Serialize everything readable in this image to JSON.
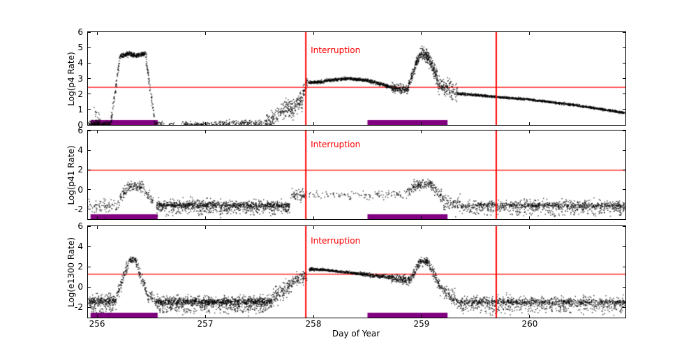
{
  "figure": {
    "background": "#ffffff"
  },
  "colors": {
    "points": "#000000",
    "vline": "#ff0000",
    "threshold": "#ff0000",
    "bar": "#800080",
    "axes": "#000000",
    "annotation": "#ff0000"
  },
  "x_axis": {
    "label": "Day of Year",
    "ticks": [
      256,
      257,
      258,
      259,
      260
    ],
    "range": [
      255.916,
      260.884
    ]
  },
  "vlines_x": [
    257.93,
    259.69
  ],
  "bars": [
    [
      255.94,
      256.56
    ],
    [
      258.5,
      259.24
    ]
  ],
  "segment_format": "[x_start, x_end, y_mean_start, y_mean_end, noise_sd, n_points]",
  "chart_data": [
    {
      "type": "scatter",
      "ylabel": "Log(p4 Rate)",
      "ylim": [
        0,
        6
      ],
      "yticks": [
        0,
        1,
        2,
        3,
        4,
        5,
        6
      ],
      "threshold_y": 2.45,
      "annotation": "Interruption",
      "segments": [
        [
          255.92,
          256.13,
          0.07,
          0.07,
          0.09,
          130
        ],
        [
          255.97,
          256.03,
          0.55,
          0.55,
          0.45,
          25
        ],
        [
          256.13,
          256.21,
          0.25,
          4.25,
          0.18,
          70
        ],
        [
          256.21,
          256.3,
          4.45,
          4.62,
          0.07,
          110
        ],
        [
          256.3,
          256.37,
          4.62,
          4.42,
          0.07,
          90
        ],
        [
          256.37,
          256.45,
          4.48,
          4.62,
          0.07,
          90
        ],
        [
          256.45,
          256.53,
          4.4,
          0.35,
          0.18,
          70
        ],
        [
          256.53,
          256.62,
          0.12,
          0.08,
          0.07,
          25
        ],
        [
          256.66,
          256.72,
          0.05,
          0.05,
          0.05,
          10
        ],
        [
          256.78,
          257.08,
          0.07,
          0.07,
          0.07,
          80
        ],
        [
          257.08,
          257.32,
          0.1,
          0.1,
          0.1,
          70
        ],
        [
          257.32,
          257.56,
          0.12,
          0.15,
          0.1,
          80
        ],
        [
          257.56,
          257.72,
          0.2,
          0.9,
          0.28,
          100
        ],
        [
          257.72,
          257.82,
          1.05,
          1.0,
          0.3,
          90
        ],
        [
          257.82,
          257.9,
          1.1,
          1.7,
          0.3,
          70
        ],
        [
          257.9,
          257.945,
          2.0,
          2.7,
          0.22,
          45
        ],
        [
          257.955,
          258.1,
          2.74,
          2.8,
          0.05,
          160
        ],
        [
          258.1,
          258.32,
          2.85,
          3.0,
          0.045,
          230
        ],
        [
          258.32,
          258.52,
          3.0,
          2.86,
          0.045,
          210
        ],
        [
          258.52,
          258.72,
          2.82,
          2.45,
          0.06,
          200
        ],
        [
          258.72,
          258.87,
          2.4,
          2.25,
          0.13,
          160
        ],
        [
          258.87,
          258.94,
          2.35,
          3.7,
          0.18,
          80
        ],
        [
          258.94,
          259.0,
          3.9,
          4.6,
          0.16,
          80
        ],
        [
          259.0,
          259.07,
          4.62,
          4.35,
          0.2,
          110
        ],
        [
          259.07,
          259.15,
          4.2,
          2.9,
          0.28,
          110
        ],
        [
          259.15,
          259.33,
          2.6,
          2.1,
          0.28,
          150
        ],
        [
          259.33,
          259.62,
          2.03,
          1.86,
          0.04,
          260
        ],
        [
          259.62,
          260.02,
          1.85,
          1.63,
          0.035,
          340
        ],
        [
          260.02,
          260.46,
          1.62,
          1.25,
          0.035,
          370
        ],
        [
          260.46,
          260.88,
          1.23,
          0.78,
          0.035,
          360
        ]
      ]
    },
    {
      "type": "scatter",
      "ylabel": "Log(p41 Rate)",
      "ylim": [
        -3,
        6
      ],
      "yticks": [
        -2,
        0,
        2,
        4,
        6
      ],
      "threshold_y": 2.0,
      "annotation": "Interruption",
      "segments": [
        [
          255.92,
          256.08,
          -1.75,
          -1.75,
          0.4,
          45
        ],
        [
          256.08,
          256.2,
          -1.6,
          -1.5,
          0.35,
          35
        ],
        [
          256.2,
          256.28,
          -1.1,
          0.1,
          0.3,
          45
        ],
        [
          256.28,
          256.42,
          0.3,
          0.35,
          0.25,
          95
        ],
        [
          256.42,
          256.52,
          0.1,
          -1.2,
          0.3,
          45
        ],
        [
          256.55,
          257.78,
          -1.6,
          -1.65,
          0.3,
          650
        ],
        [
          256.55,
          257.78,
          -1.55,
          -1.6,
          0.12,
          450
        ],
        [
          256.55,
          257.78,
          -2.2,
          -2.2,
          0.22,
          140
        ],
        [
          257.79,
          257.94,
          -0.6,
          -0.5,
          0.28,
          70
        ],
        [
          257.96,
          258.52,
          -0.5,
          -0.55,
          0.22,
          65
        ],
        [
          258.52,
          258.86,
          -0.55,
          -0.45,
          0.24,
          55
        ],
        [
          258.86,
          258.96,
          -0.3,
          0.45,
          0.25,
          55
        ],
        [
          258.96,
          259.1,
          0.5,
          0.55,
          0.24,
          95
        ],
        [
          259.1,
          259.2,
          0.3,
          -0.9,
          0.3,
          55
        ],
        [
          259.2,
          259.36,
          -1.3,
          -1.5,
          0.4,
          80
        ],
        [
          259.36,
          260.88,
          -1.65,
          -1.7,
          0.32,
          560
        ],
        [
          259.36,
          260.88,
          -1.6,
          -1.65,
          0.12,
          420
        ],
        [
          259.36,
          260.88,
          -2.3,
          -2.3,
          0.22,
          110
        ]
      ]
    },
    {
      "type": "scatter",
      "ylabel": "Log(e1300 Rate)",
      "ylim": [
        -3,
        6
      ],
      "yticks": [
        -2,
        0,
        2,
        4,
        6
      ],
      "threshold_y": 1.3,
      "annotation": "Interruption",
      "segments": [
        [
          255.92,
          256.18,
          -1.45,
          -1.45,
          0.35,
          170
        ],
        [
          255.92,
          256.18,
          -1.4,
          -1.4,
          0.13,
          110
        ],
        [
          255.92,
          256.18,
          -2.2,
          -2.2,
          0.2,
          35
        ],
        [
          256.18,
          256.3,
          -0.9,
          2.55,
          0.28,
          80
        ],
        [
          256.3,
          256.36,
          2.7,
          2.6,
          0.13,
          60
        ],
        [
          256.36,
          256.46,
          2.3,
          -0.6,
          0.3,
          70
        ],
        [
          256.46,
          256.54,
          -0.9,
          -1.3,
          0.3,
          40
        ],
        [
          256.54,
          257.62,
          -1.5,
          -1.5,
          0.32,
          780
        ],
        [
          256.54,
          257.62,
          -1.45,
          -1.45,
          0.12,
          500
        ],
        [
          256.54,
          257.62,
          -2.25,
          -2.25,
          0.22,
          150
        ],
        [
          257.62,
          257.8,
          -1.1,
          0.35,
          0.4,
          130
        ],
        [
          257.8,
          257.94,
          0.5,
          1.15,
          0.3,
          100
        ],
        [
          257.96,
          258.12,
          1.75,
          1.7,
          0.06,
          160
        ],
        [
          258.12,
          258.42,
          1.68,
          1.32,
          0.06,
          260
        ],
        [
          258.42,
          258.72,
          1.3,
          0.95,
          0.1,
          250
        ],
        [
          258.72,
          258.9,
          0.9,
          0.62,
          0.2,
          170
        ],
        [
          258.9,
          258.98,
          0.85,
          2.35,
          0.2,
          70
        ],
        [
          258.98,
          259.07,
          2.55,
          2.45,
          0.17,
          90
        ],
        [
          259.07,
          259.17,
          2.1,
          0.1,
          0.28,
          80
        ],
        [
          259.17,
          259.32,
          -0.2,
          -1.2,
          0.35,
          90
        ],
        [
          259.32,
          260.88,
          -1.5,
          -1.55,
          0.32,
          680
        ],
        [
          259.32,
          260.88,
          -1.45,
          -1.5,
          0.12,
          450
        ],
        [
          259.32,
          260.88,
          -2.25,
          -2.25,
          0.22,
          140
        ]
      ]
    }
  ]
}
